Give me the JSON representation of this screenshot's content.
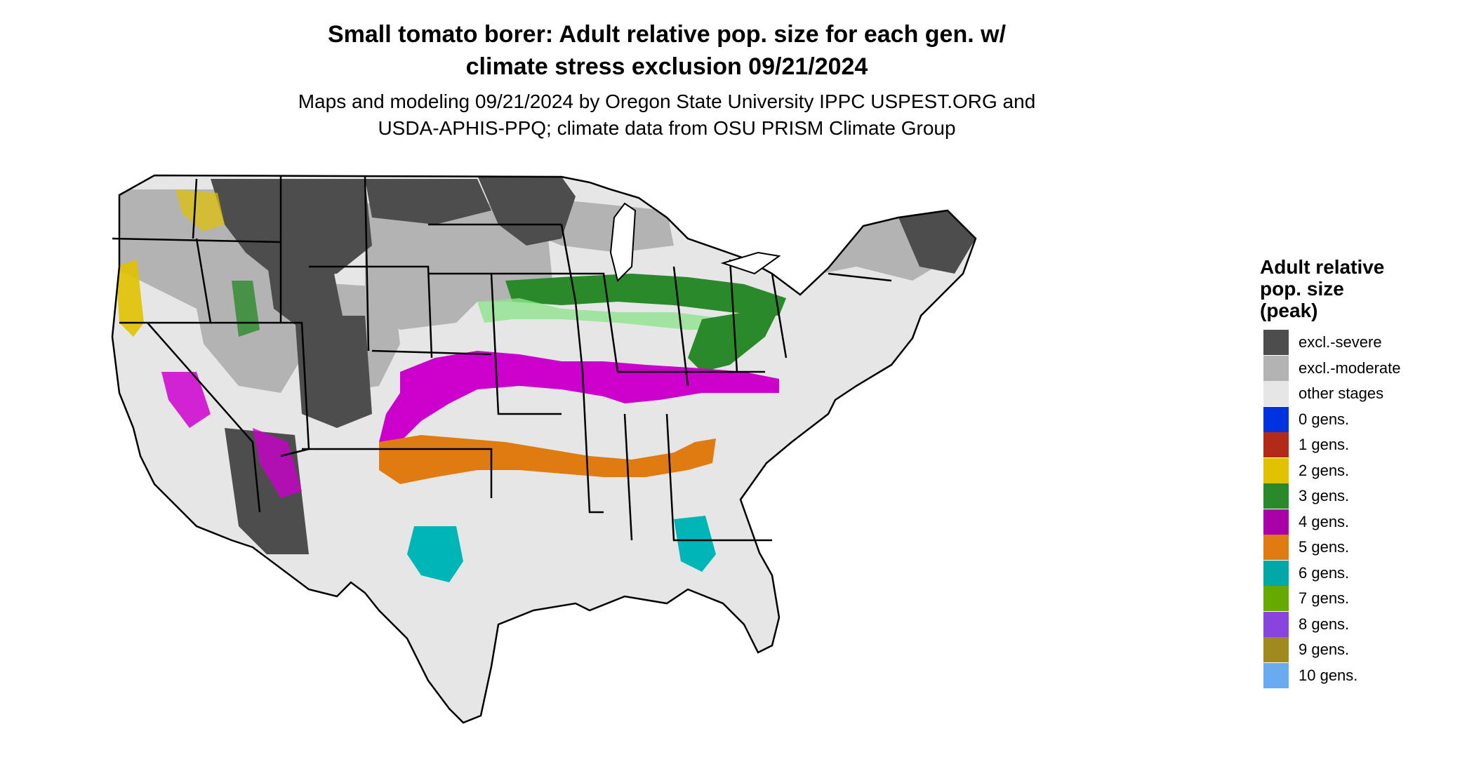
{
  "title": {
    "line1": "Small tomato borer: Adult relative pop. size for each gen. w/",
    "line2": "climate stress exclusion 09/21/2024"
  },
  "subtitle": {
    "line1": "Maps and modeling 09/21/2024 by Oregon State University IPPC USPEST.ORG and",
    "line2": "USDA-APHIS-PPQ; climate data from OSU PRISM Climate Group"
  },
  "legend": {
    "title_line1": "Adult relative",
    "title_line2": "pop. size",
    "title_line3": "(peak)",
    "items": [
      {
        "label": "excl.-severe",
        "color": "#4d4d4d"
      },
      {
        "label": "excl.-moderate",
        "color": "#b3b3b3"
      },
      {
        "label": "other stages",
        "color": "#e6e6e6"
      },
      {
        "label": "0 gens.",
        "color": "#0033dd"
      },
      {
        "label": "1 gens.",
        "color": "#b22a1a"
      },
      {
        "label": "2 gens.",
        "color": "#e0c200"
      },
      {
        "label": "3 gens.",
        "color": "#2a8a2a"
      },
      {
        "label": "4 gens.",
        "color": "#aa00aa"
      },
      {
        "label": "5 gens.",
        "color": "#e07b12"
      },
      {
        "label": "6 gens.",
        "color": "#00a8a8"
      },
      {
        "label": "7 gens.",
        "color": "#66aa00"
      },
      {
        "label": "8 gens.",
        "color": "#8844dd"
      },
      {
        "label": "9 gens.",
        "color": "#a08a20"
      },
      {
        "label": "10 gens.",
        "color": "#6aaaf0"
      }
    ]
  },
  "colors": {
    "severe": "#4d4d4d",
    "moderate": "#b3b3b3",
    "other": "#e6e6e6",
    "gen2": "#e0c200",
    "gen3": "#2a8a2a",
    "gen3_light": "#8fe38f",
    "gen4": "#cc00cc",
    "gen5": "#e07b12",
    "gen6": "#00b5b5",
    "gen7": "#66aa00"
  }
}
